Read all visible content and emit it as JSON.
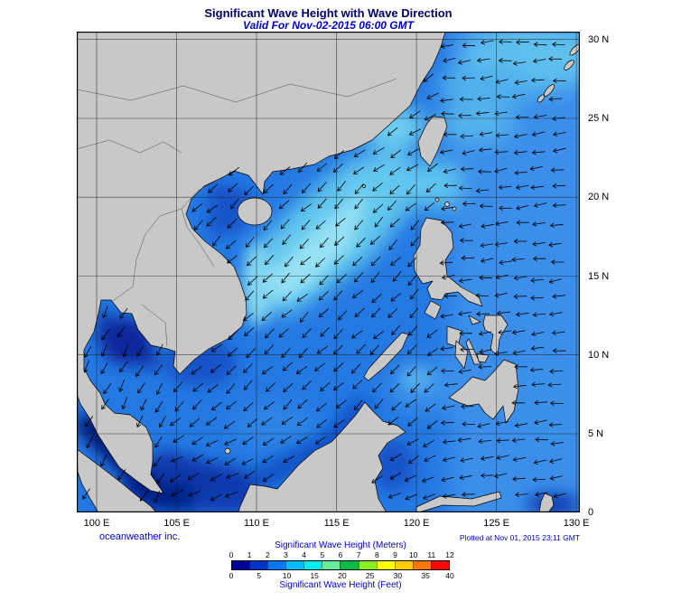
{
  "title": "Significant Wave Height with Wave Direction",
  "subtitle": "Valid For Nov-02-2015 06:00 GMT",
  "axes": {
    "lon_ticks": [
      "100 E",
      "105 E",
      "110 E",
      "115 E",
      "120 E",
      "125 E",
      "130 E"
    ],
    "lat_ticks": [
      "30 N",
      "25 N",
      "20 N",
      "15 N",
      "10 N",
      "5 N",
      "0"
    ]
  },
  "footer": {
    "left": "oceanweather inc.",
    "right": "Plotted at Nov 01, 2015 23:11 GMT"
  },
  "legend": {
    "meters_title": "Significant Wave Height (Meters)",
    "feet_title": "Significant Wave Height (Feet)",
    "meters_ticks": [
      "0",
      "1",
      "2",
      "3",
      "4",
      "5",
      "6",
      "7",
      "8",
      "9",
      "10",
      "11",
      "12"
    ],
    "feet_ticks": [
      "0",
      "5",
      "10",
      "15",
      "20",
      "25",
      "30",
      "35",
      "40"
    ],
    "colors": [
      "#000099",
      "#0033CC",
      "#0077FF",
      "#00BBFF",
      "#00EEEE",
      "#66EE99",
      "#00BB44",
      "#88EE22",
      "#FFFF00",
      "#FFCC00",
      "#FF7700",
      "#FF0000"
    ]
  },
  "colors": {
    "accent_text": "#0000CC",
    "title_text": "#00006B"
  },
  "map": {
    "land_color": "#C8C8C8",
    "sea_base_color": "#2478E2",
    "arrow_color": "#000000"
  }
}
